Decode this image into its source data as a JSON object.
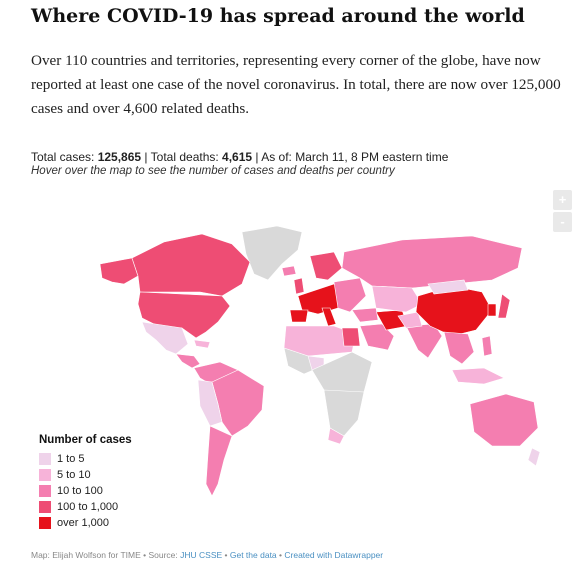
{
  "headline": "Where COVID-19 has spread around the world",
  "intro": "Over 110 countries and territories, representing every corner of the globe, have now reported at least one case of the novel coronavirus. In total, there are now over 125,000 cases and over 4,600 related deaths.",
  "stats": {
    "cases_label": "Total cases: ",
    "cases_value": "125,865",
    "deaths_label": " | Total deaths: ",
    "deaths_value": "4,615",
    "asof_text": " | As of: March 11, 8 PM eastern time"
  },
  "hint": "Hover over the map to see the number of cases and deaths per country",
  "zoom": {
    "in": "+",
    "out": "-"
  },
  "legend": {
    "title": "Number of cases",
    "items": [
      {
        "label": "1 to 5",
        "color": "#efd3ea"
      },
      {
        "label": "5 to 10",
        "color": "#f7b3d9"
      },
      {
        "label": "10 to 100",
        "color": "#f47eb0"
      },
      {
        "label": "100 to 1,000",
        "color": "#ee4d74"
      },
      {
        "label": "over 1,000",
        "color": "#e6121b"
      }
    ]
  },
  "colors": {
    "nodata": "#d9d9d9"
  },
  "footer": {
    "credit": "Map: Elijah Wolfson for TIME",
    "sep1": " • Source: ",
    "source": "JHU CSSE",
    "sep2": " • ",
    "get_data": "Get the data",
    "sep3": " • ",
    "created": "Created with Datawrapper"
  }
}
